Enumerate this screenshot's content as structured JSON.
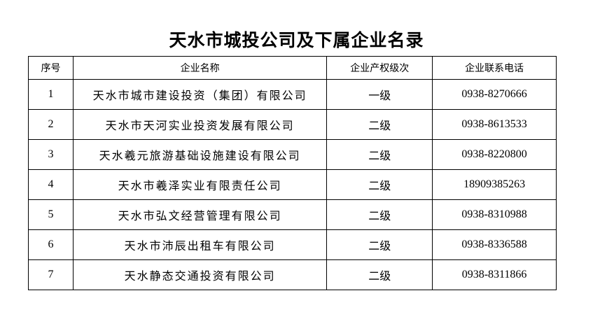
{
  "title": "天水市城投公司及下属企业名录",
  "headers": [
    "序号",
    "企业名称",
    "企业产权级次",
    "企业联系电话"
  ],
  "rows": [
    {
      "no": "1",
      "name": "天水市城市建设投资（集团）有限公司",
      "level": "一级",
      "phone": "0938-8270666"
    },
    {
      "no": "2",
      "name": "天水市天河实业投资发展有限公司",
      "level": "二级",
      "phone": "0938-8613533"
    },
    {
      "no": "3",
      "name": "天水羲元旅游基础设施建设有限公司",
      "level": "二级",
      "phone": "0938-8220800"
    },
    {
      "no": "4",
      "name": "天水市羲泽实业有限责任公司",
      "level": "二级",
      "phone": "18909385263"
    },
    {
      "no": "5",
      "name": "天水市弘文经营管理有限公司",
      "level": "二级",
      "phone": "0938-8310988"
    },
    {
      "no": "6",
      "name": "天水市沛辰出租车有限公司",
      "level": "二级",
      "phone": "0938-8336588"
    },
    {
      "no": "7",
      "name": "天水静态交通投资有限公司",
      "level": "二级",
      "phone": "0938-8311866"
    }
  ]
}
